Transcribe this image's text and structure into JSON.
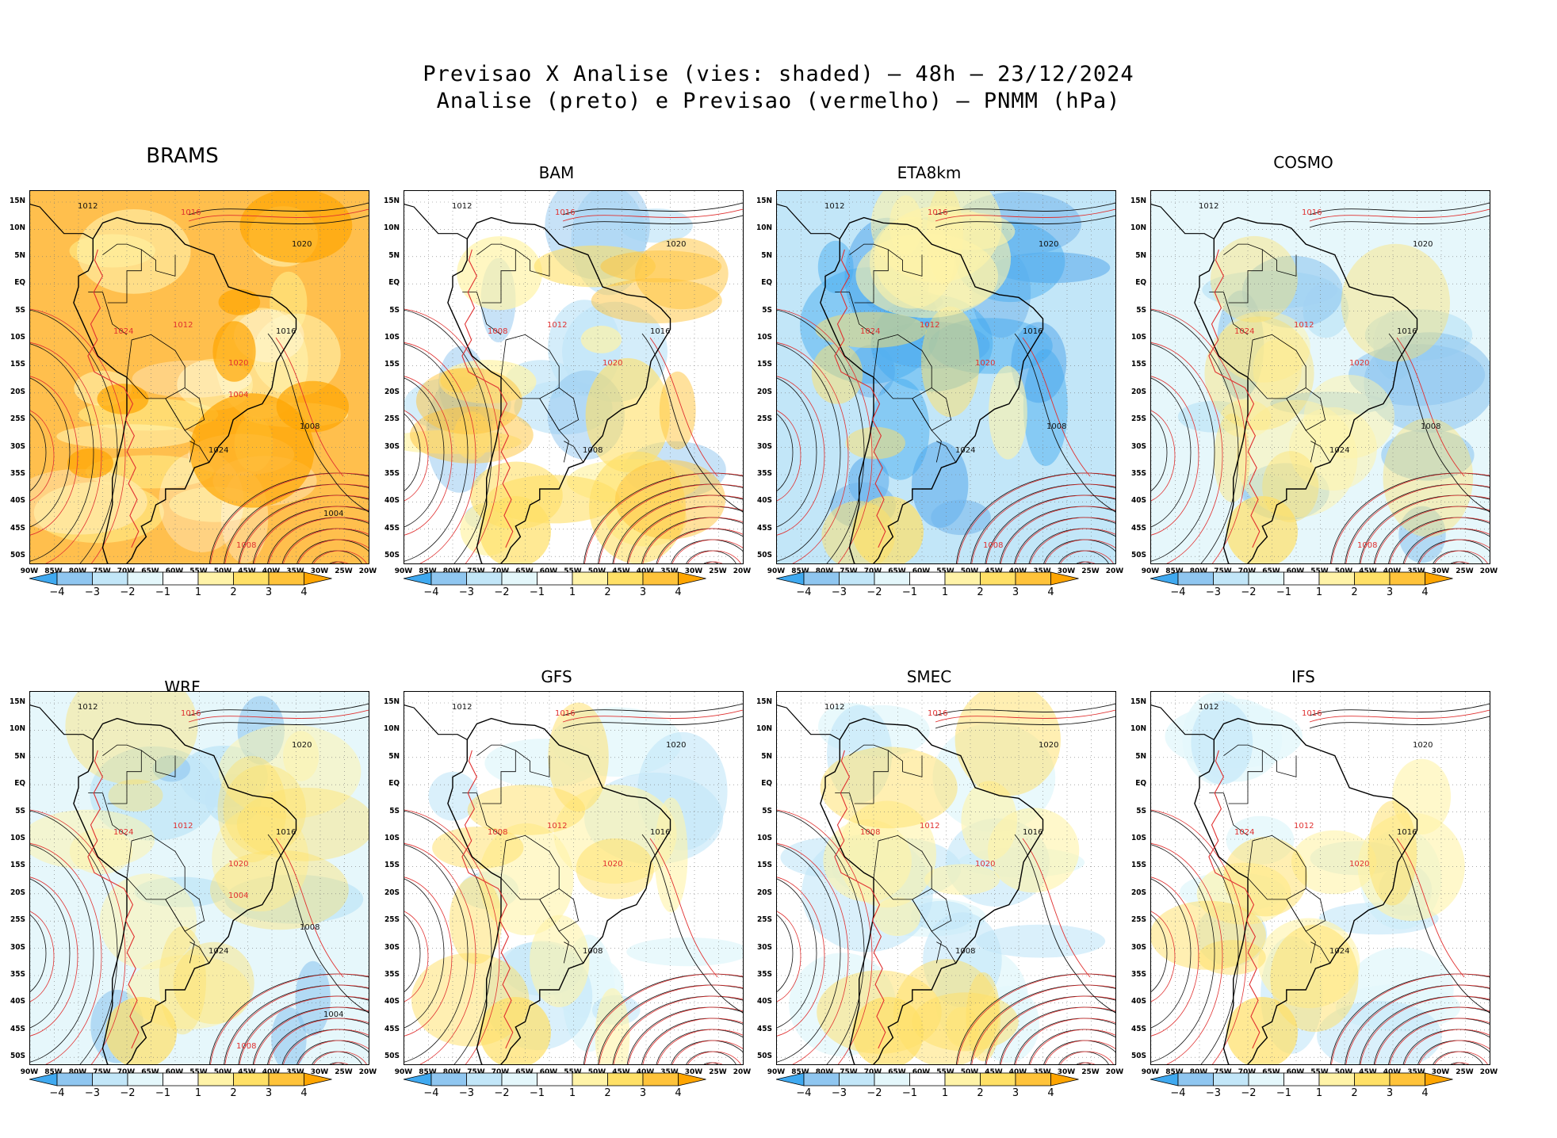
{
  "header": {
    "title_line1": "Previsao X Analise (vies: shaded) — 48h — 23/12/2024",
    "title_line2": "Analise (preto) e Previsao (vermelho) — PNMM (hPa)"
  },
  "axes": {
    "lat_labels": [
      "15N",
      "10N",
      "5N",
      "EQ",
      "5S",
      "10S",
      "15S",
      "20S",
      "25S",
      "30S",
      "35S",
      "40S",
      "45S",
      "50S"
    ],
    "lon_labels": [
      "90W",
      "85W",
      "80W",
      "75W",
      "70W",
      "65W",
      "60W",
      "55W",
      "50W",
      "45W",
      "40W",
      "35W",
      "30W",
      "25W",
      "20W"
    ]
  },
  "colorbar": {
    "labels": [
      "−4",
      "−3",
      "−2",
      "−1",
      "1",
      "2",
      "3",
      "4"
    ],
    "colors": [
      "#3fa9f0",
      "#8fc6f0",
      "#c2e6f8",
      "#e4f7fb",
      "#ffffff",
      "#fff3a8",
      "#ffe066",
      "#ffc33a",
      "#ffa500"
    ]
  },
  "colors": {
    "analysis_contour": "#111111",
    "forecast_contour": "#e03030"
  },
  "panels": [
    {
      "name": "BRAMS",
      "bias": "warm",
      "contours": [
        "1012",
        "1016",
        "1020",
        "1024",
        "1008",
        "1004"
      ]
    },
    {
      "name": "BAM",
      "bias": "mixed",
      "contours": [
        "1012",
        "1016",
        "1020",
        "1008"
      ]
    },
    {
      "name": "ETA8km",
      "bias": "cold",
      "contours": [
        "1012",
        "1016",
        "1020",
        "1024",
        "1008"
      ]
    },
    {
      "name": "COSMO",
      "bias": "cool",
      "contours": [
        "1012",
        "1016",
        "1020",
        "1024",
        "1008"
      ]
    },
    {
      "name": "WRF",
      "bias": "cool",
      "contours": [
        "1012",
        "1016",
        "1020",
        "1024",
        "1008",
        "1004"
      ]
    },
    {
      "name": "GFS",
      "bias": "light",
      "contours": [
        "1012",
        "1016",
        "1020",
        "1008"
      ]
    },
    {
      "name": "SMEC",
      "bias": "light",
      "contours": [
        "1012",
        "1016",
        "1020",
        "1008"
      ]
    },
    {
      "name": "IFS",
      "bias": "light",
      "contours": [
        "1012",
        "1016",
        "1020",
        "1024"
      ]
    }
  ]
}
